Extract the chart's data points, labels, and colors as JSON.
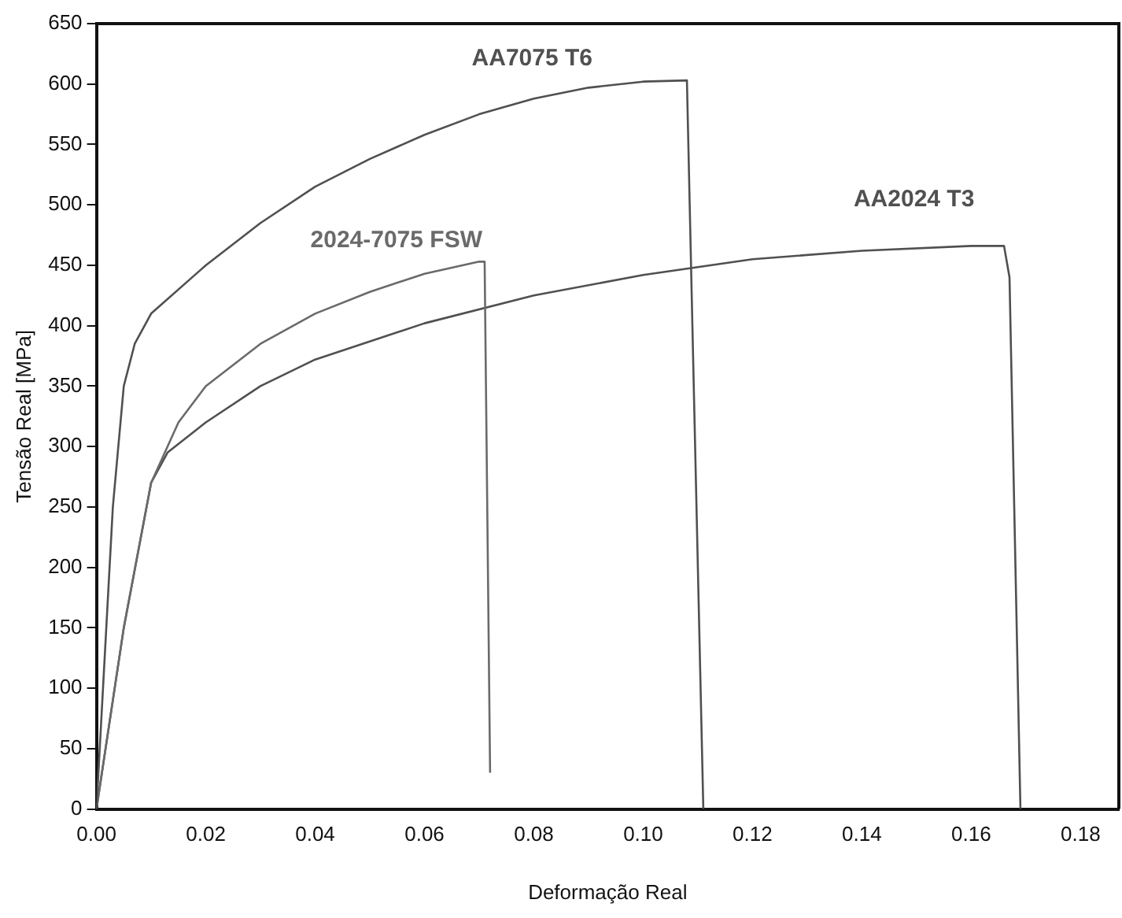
{
  "chart_data": {
    "type": "line",
    "xlabel": "Deformação Real",
    "ylabel": "Tensão Real [MPa]",
    "xlim": [
      0,
      0.187
    ],
    "xticks": [
      {
        "value": 0,
        "label": "0.00"
      },
      {
        "value": 0.02,
        "label": "0.02"
      },
      {
        "value": 0.04,
        "label": "0.04"
      },
      {
        "value": 0.06,
        "label": "0.06"
      },
      {
        "value": 0.08,
        "label": "0.08"
      },
      {
        "value": 0.1,
        "label": "0.10"
      },
      {
        "value": 0.12,
        "label": "0.12"
      },
      {
        "value": 0.14,
        "label": "0.14"
      },
      {
        "value": 0.16,
        "label": "0.16"
      },
      {
        "value": 0.18,
        "label": "0.18"
      }
    ],
    "ylim": [
      0,
      650
    ],
    "yticks": [
      0,
      50,
      100,
      150,
      200,
      250,
      300,
      350,
      400,
      450,
      500,
      550,
      600,
      650
    ],
    "grid": false,
    "legend": false,
    "marker": "none",
    "line_style": "solid",
    "series": [
      {
        "name": "AA7075 T6",
        "color": "#505050",
        "x": [
          0,
          0.003,
          0.005,
          0.007,
          0.01,
          0.02,
          0.03,
          0.04,
          0.05,
          0.06,
          0.07,
          0.08,
          0.09,
          0.1,
          0.108,
          0.109,
          0.111
        ],
        "values": [
          0,
          250,
          350,
          385,
          410,
          450,
          485,
          515,
          538,
          558,
          575,
          588,
          597,
          602,
          603,
          400,
          0
        ]
      },
      {
        "name": "2024-7075 FSW",
        "color": "#6a6a6a",
        "x": [
          0,
          0.005,
          0.01,
          0.015,
          0.02,
          0.03,
          0.04,
          0.05,
          0.06,
          0.07,
          0.071,
          0.072
        ],
        "values": [
          0,
          150,
          270,
          320,
          350,
          385,
          410,
          428,
          443,
          453,
          453,
          30
        ]
      },
      {
        "name": "AA2024 T3",
        "color": "#505050",
        "x": [
          0,
          0.005,
          0.01,
          0.013,
          0.02,
          0.03,
          0.04,
          0.06,
          0.08,
          0.1,
          0.12,
          0.14,
          0.16,
          0.166,
          0.167,
          0.169
        ],
        "values": [
          0,
          150,
          270,
          295,
          320,
          350,
          372,
          402,
          425,
          442,
          455,
          462,
          466,
          466,
          440,
          0
        ]
      }
    ]
  }
}
